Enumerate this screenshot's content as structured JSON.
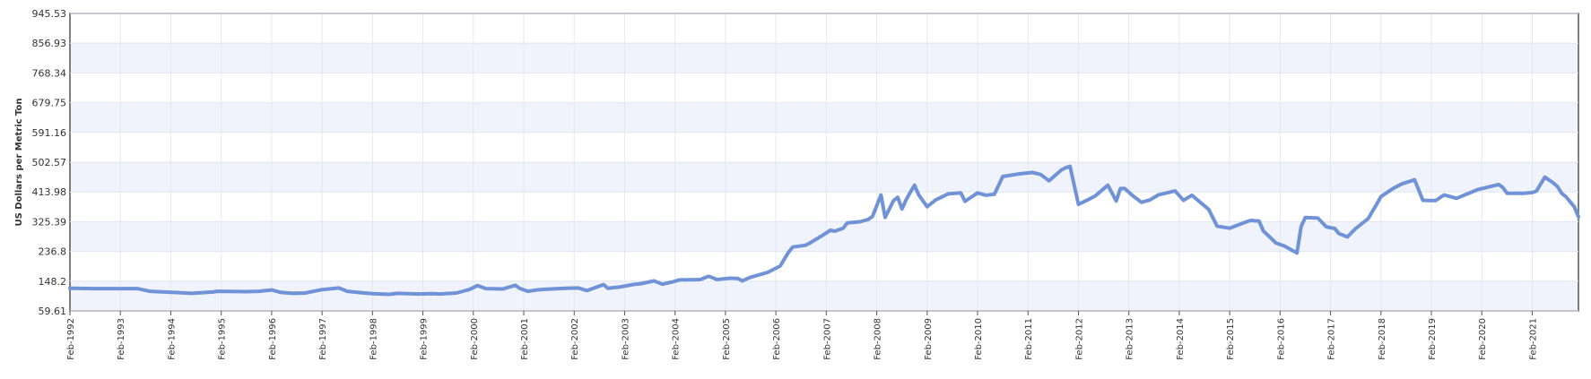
{
  "chart_data": {
    "type": "line",
    "title": "",
    "xlabel": "",
    "ylabel": "US Dollars per Metric Ton",
    "ylim": [
      59.61,
      945.53
    ],
    "y_ticks": [
      "59.61",
      "148.2",
      "236.8",
      "325.39",
      "413.98",
      "502.57",
      "591.16",
      "679.75",
      "768.34",
      "856.93",
      "945.53"
    ],
    "x_tick_labels": [
      "Feb-1992",
      "Feb-1993",
      "Feb-1994",
      "Feb-1995",
      "Feb-1996",
      "Feb-1997",
      "Feb-1998",
      "Feb-1999",
      "Feb-2000",
      "Feb-2001",
      "Feb-2002",
      "Feb-2003",
      "Feb-2004",
      "Feb-2005",
      "Feb-2006",
      "Feb-2007",
      "Feb-2008",
      "Feb-2009",
      "Feb-2010",
      "Feb-2011",
      "Feb-2012",
      "Feb-2013",
      "Feb-2014",
      "Feb-2015",
      "Feb-2016",
      "Feb-2017",
      "Feb-2018",
      "Feb-2019",
      "Feb-2020",
      "Feb-2021"
    ],
    "x_range": [
      "Feb-1992",
      "Jan-2022"
    ],
    "grid": true,
    "legend": "none",
    "line_color": "#7092d6",
    "band_color": "#f0f3fb",
    "series": [
      {
        "x": [
          "Feb-1992",
          "Aug-1992",
          "Dec-1992",
          "Jun-1993",
          "Sep-1993",
          "Apr-1994",
          "Jul-1994",
          "Dec-1994",
          "Jan-1995",
          "Aug-1995",
          "Nov-1995",
          "Feb-1996",
          "Apr-1996",
          "Jul-1996",
          "Oct-1996",
          "Feb-1997",
          "Jun-1997",
          "Aug-1997",
          "Dec-1997",
          "Feb-1998",
          "Jun-1998",
          "Aug-1998",
          "Jan-1999",
          "Apr-1999",
          "Jun-1999",
          "Oct-1999",
          "Jan-2000",
          "Mar-2000",
          "May-2000",
          "Sep-2000",
          "Dec-2000",
          "Jan-2001",
          "Mar-2001",
          "May-2001",
          "Jul-2001",
          "Dec-2001",
          "Mar-2002",
          "May-2002",
          "Sep-2002",
          "Oct-2002",
          "Jan-2003",
          "Apr-2003",
          "Jun-2003",
          "Sep-2003",
          "Nov-2003",
          "Feb-2004",
          "Mar-2004",
          "Aug-2004",
          "Oct-2004",
          "Nov-2004",
          "Dec-2004",
          "Mar-2005",
          "May-2005",
          "Jun-2005",
          "Aug-2005",
          "Dec-2005",
          "Mar-2006",
          "May-2006",
          "Jun-2006",
          "Sep-2006",
          "Oct-2006",
          "Jan-2007",
          "Mar-2007",
          "Apr-2007",
          "Jun-2007",
          "Jul-2007",
          "Oct-2007",
          "Dec-2007",
          "Jan-2008",
          "Mar-2008",
          "Apr-2008",
          "Jun-2008",
          "Jul-2008",
          "Aug-2008",
          "Sep-2008",
          "Oct-2008",
          "Nov-2008",
          "Dec-2008",
          "Feb-2009",
          "Apr-2009",
          "Jul-2009",
          "Oct-2009",
          "Nov-2009",
          "Feb-2010",
          "Apr-2010",
          "Jun-2010",
          "Aug-2010",
          "Dec-2010",
          "Mar-2011",
          "May-2011",
          "Jul-2011",
          "Oct-2011",
          "Nov-2011",
          "Dec-2011",
          "Feb-2012",
          "Apr-2012",
          "Jun-2012",
          "Sep-2012",
          "Nov-2012",
          "Dec-2012",
          "Jan-2013",
          "Mar-2013",
          "May-2013",
          "Jul-2013",
          "Sep-2013",
          "Jan-2014",
          "Mar-2014",
          "May-2014",
          "Sep-2014",
          "Nov-2014",
          "Feb-2015",
          "Jun-2015",
          "Jul-2015",
          "Sep-2015",
          "Oct-2015",
          "Jan-2016",
          "Mar-2016",
          "Jun-2016",
          "Jul-2016",
          "Aug-2016",
          "Nov-2016",
          "Jan-2017",
          "Mar-2017",
          "Apr-2017",
          "Jun-2017",
          "Aug-2017",
          "Nov-2017",
          "Jan-2018",
          "Feb-2018",
          "May-2018",
          "Jul-2018",
          "Oct-2018",
          "Dec-2018",
          "Mar-2019",
          "May-2019",
          "Aug-2019",
          "Jan-2020",
          "Jun-2020",
          "Jul-2020",
          "Aug-2020",
          "Dec-2020",
          "Feb-2021",
          "Mar-2021",
          "May-2021",
          "Jul-2021",
          "Aug-2021",
          "Sep-2021",
          "Oct-2021",
          "Dec-2021",
          "Jan-2022"
        ],
        "values": [
          127,
          126,
          126,
          126,
          118,
          114,
          112,
          116,
          118,
          117,
          118,
          122,
          115,
          112,
          113,
          123,
          128,
          118,
          113,
          111,
          109,
          112,
          110,
          111,
          110,
          113,
          123,
          135,
          126,
          125,
          136,
          127,
          118,
          122,
          124,
          127,
          128,
          120,
          138,
          127,
          131,
          138,
          141,
          149,
          139,
          148,
          152,
          153,
          163,
          158,
          153,
          157,
          156,
          149,
          160,
          174,
          193,
          234,
          250,
          255,
          261,
          284,
          300,
          297,
          306,
          322,
          325,
          332,
          341,
          405,
          338,
          388,
          398,
          363,
          391,
          413,
          434,
          405,
          370,
          390,
          408,
          411,
          386,
          411,
          404,
          407,
          460,
          468,
          472,
          466,
          447,
          480,
          486,
          490,
          377,
          389,
          402,
          434,
          387,
          424,
          424,
          402,
          383,
          390,
          405,
          417,
          389,
          404,
          362,
          312,
          306,
          325,
          329,
          327,
          298,
          262,
          253,
          232,
          311,
          338,
          336,
          310,
          305,
          290,
          280,
          305,
          335,
          378,
          400,
          425,
          438,
          450,
          389,
          388,
          405,
          395,
          421,
          436,
          427,
          410,
          410,
          412,
          416,
          458,
          441,
          430,
          410,
          400,
          370,
          340
        ]
      }
    ]
  }
}
